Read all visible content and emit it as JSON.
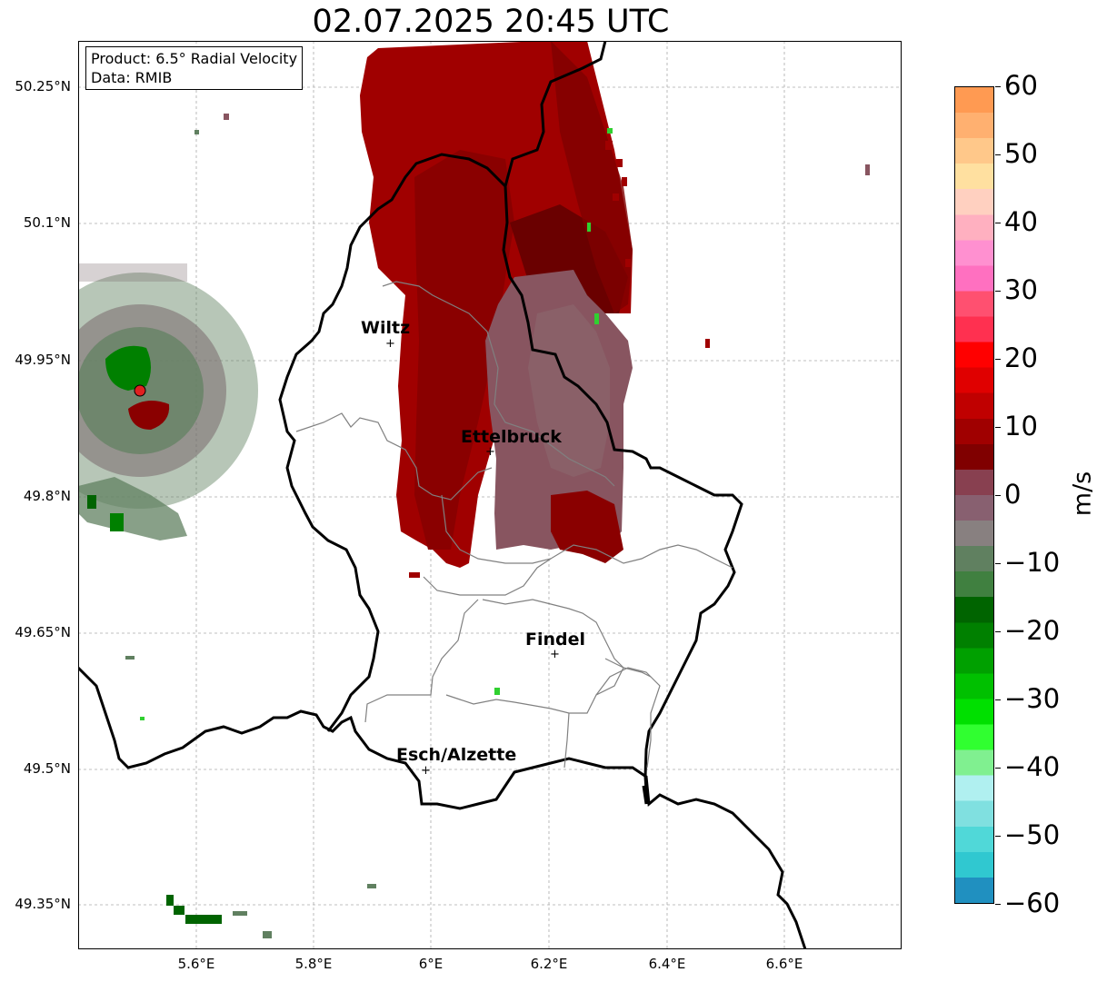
{
  "title": "02.07.2025 20:45 UTC",
  "info": {
    "product": "Product: 6.5° Radial Velocity",
    "data": "Data: RMIB"
  },
  "lat_labels": [
    "50.25°N",
    "50.1°N",
    "49.95°N",
    "49.8°N",
    "49.65°N",
    "49.5°N",
    "49.35°N"
  ],
  "lon_labels": [
    "5.6°E",
    "5.8°E",
    "6°E",
    "6.2°E",
    "6.4°E",
    "6.6°E"
  ],
  "cities": [
    "Wiltz",
    "Ettelbruck",
    "Findel",
    "Esch/Alzette"
  ],
  "colorbar": {
    "label": "m/s",
    "ticks": [
      "60",
      "50",
      "40",
      "30",
      "20",
      "10",
      "0",
      "−10",
      "−20",
      "−30",
      "−40",
      "−50",
      "−60"
    ],
    "colors": [
      "#ff9a52",
      "#ffb070",
      "#ffc88a",
      "#ffe0a0",
      "#ffd0c0",
      "#ffb0c0",
      "#ff90d0",
      "#ff70c0",
      "#ff5070",
      "#ff3050",
      "#ff0000",
      "#e00000",
      "#c00000",
      "#a00000",
      "#800000",
      "#884050",
      "#886070",
      "#888080",
      "#608060",
      "#408040",
      "#006400",
      "#008000",
      "#00a000",
      "#00c000",
      "#00e000",
      "#30ff30",
      "#80f090",
      "#b0f0f0",
      "#80e0e0",
      "#50d8d8",
      "#30c8d0",
      "#2090c0"
    ]
  },
  "colors": {
    "approaching_strong": "#006400",
    "receding_strong": "#a00000",
    "muted_receding": "#885560",
    "muted_approaching": "#608060",
    "radar_site": "#e02020"
  }
}
